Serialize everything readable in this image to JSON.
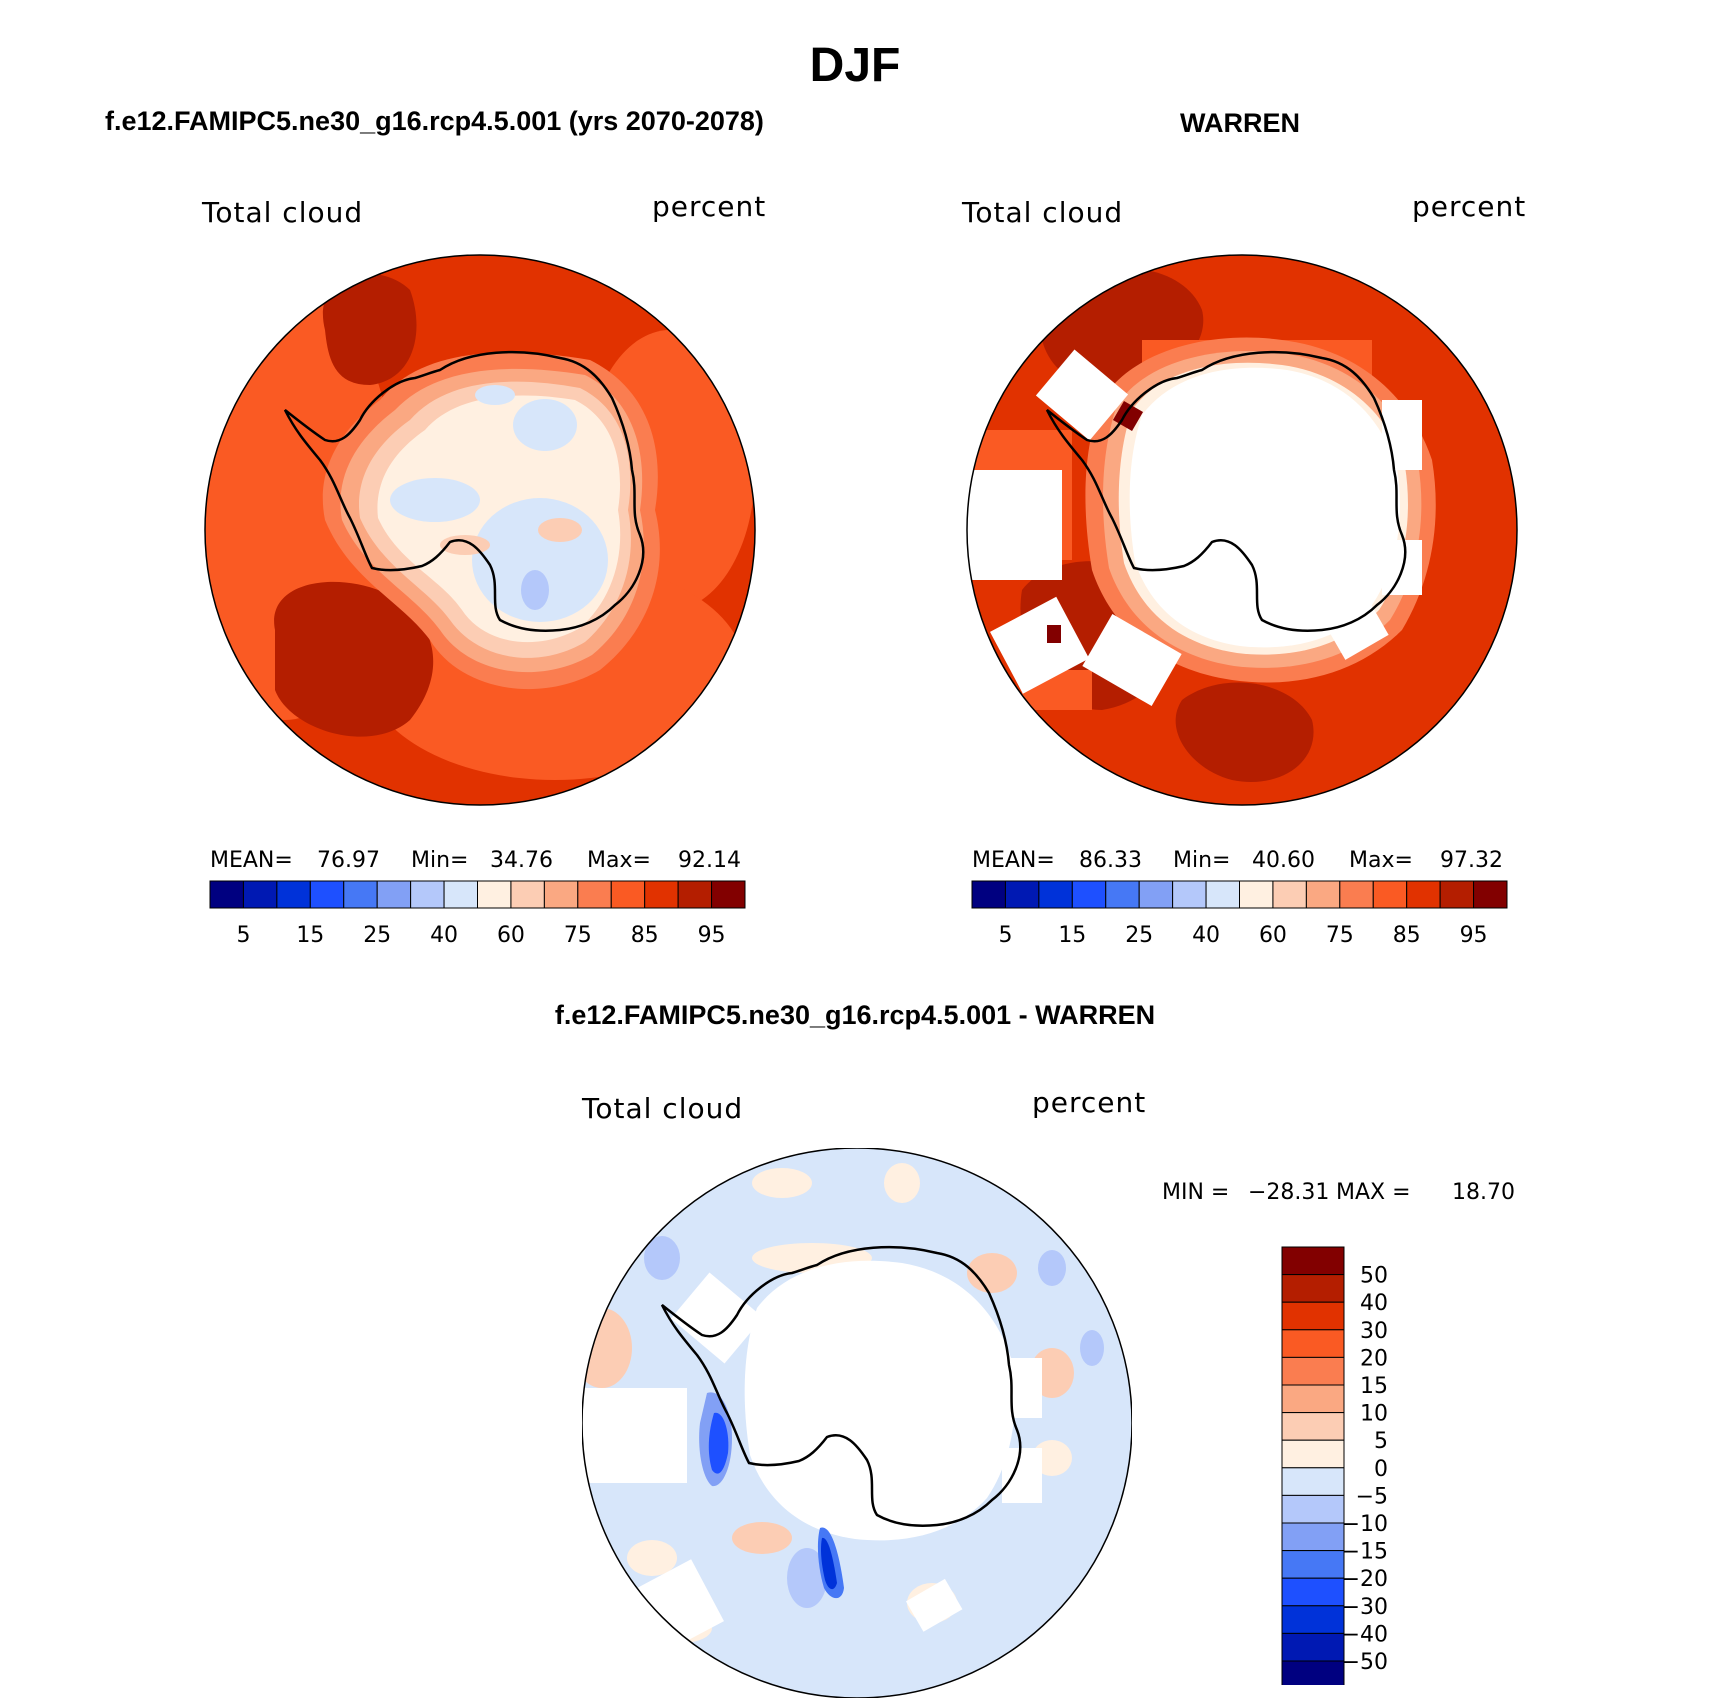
{
  "page_title": "DJF",
  "panels": [
    {
      "title": "f.e12.FAMIPC5.ne30_g16.rcp4.5.001 (yrs 2070-2078)",
      "variable": "Total cloud",
      "units": "percent",
      "stats": {
        "mean_label": "MEAN=",
        "mean": "76.97",
        "min_label": "Min=",
        "min": "34.76",
        "max_label": "Max=",
        "max": "92.14"
      }
    },
    {
      "title": "WARREN",
      "variable": "Total cloud",
      "units": "percent",
      "stats": {
        "mean_label": "MEAN=",
        "mean": "86.33",
        "min_label": "Min=",
        "min": "40.60",
        "max_label": "Max=",
        "max": "97.32"
      }
    },
    {
      "title": "f.e12.FAMIPC5.ne30_g16.rcp4.5.001 - WARREN",
      "variable": "Total cloud",
      "units": "percent",
      "stats": {
        "min_label": "MIN =",
        "min": "−28.31",
        "max_label": "MAX =",
        "max": "18.70"
      }
    }
  ],
  "colorbar_abs": {
    "colors": [
      "#000080",
      "#0019b3",
      "#0032d9",
      "#1e50ff",
      "#4678f5",
      "#82a0f5",
      "#b4c8fa",
      "#d7e6fa",
      "#fff0e1",
      "#fccdb4",
      "#faa882",
      "#fa7d50",
      "#fa5a23",
      "#e13200",
      "#b41e00",
      "#820000"
    ],
    "tick_labels": [
      "5",
      "15",
      "25",
      "40",
      "60",
      "75",
      "85",
      "95"
    ]
  },
  "colorbar_diff": {
    "colors": [
      "#820000",
      "#b41e00",
      "#e13200",
      "#fa5a23",
      "#fa7d50",
      "#faa882",
      "#fccdb4",
      "#fff0e1",
      "#d7e6fa",
      "#b4c8fa",
      "#82a0f5",
      "#4678f5",
      "#1e50ff",
      "#0032d9",
      "#0019b3",
      "#000080"
    ],
    "tick_labels": [
      "50",
      "40",
      "30",
      "20",
      "15",
      "10",
      "5",
      "0",
      "−5",
      "−10",
      "−15",
      "−20",
      "−30",
      "−40",
      "−50"
    ]
  },
  "colors": {
    "ocean_abs_left": "#e13200",
    "ocean_abs_right": "#e13200",
    "diff_background": "#d7e6fa",
    "missing": "#ffffff",
    "coastline": "#000000"
  }
}
